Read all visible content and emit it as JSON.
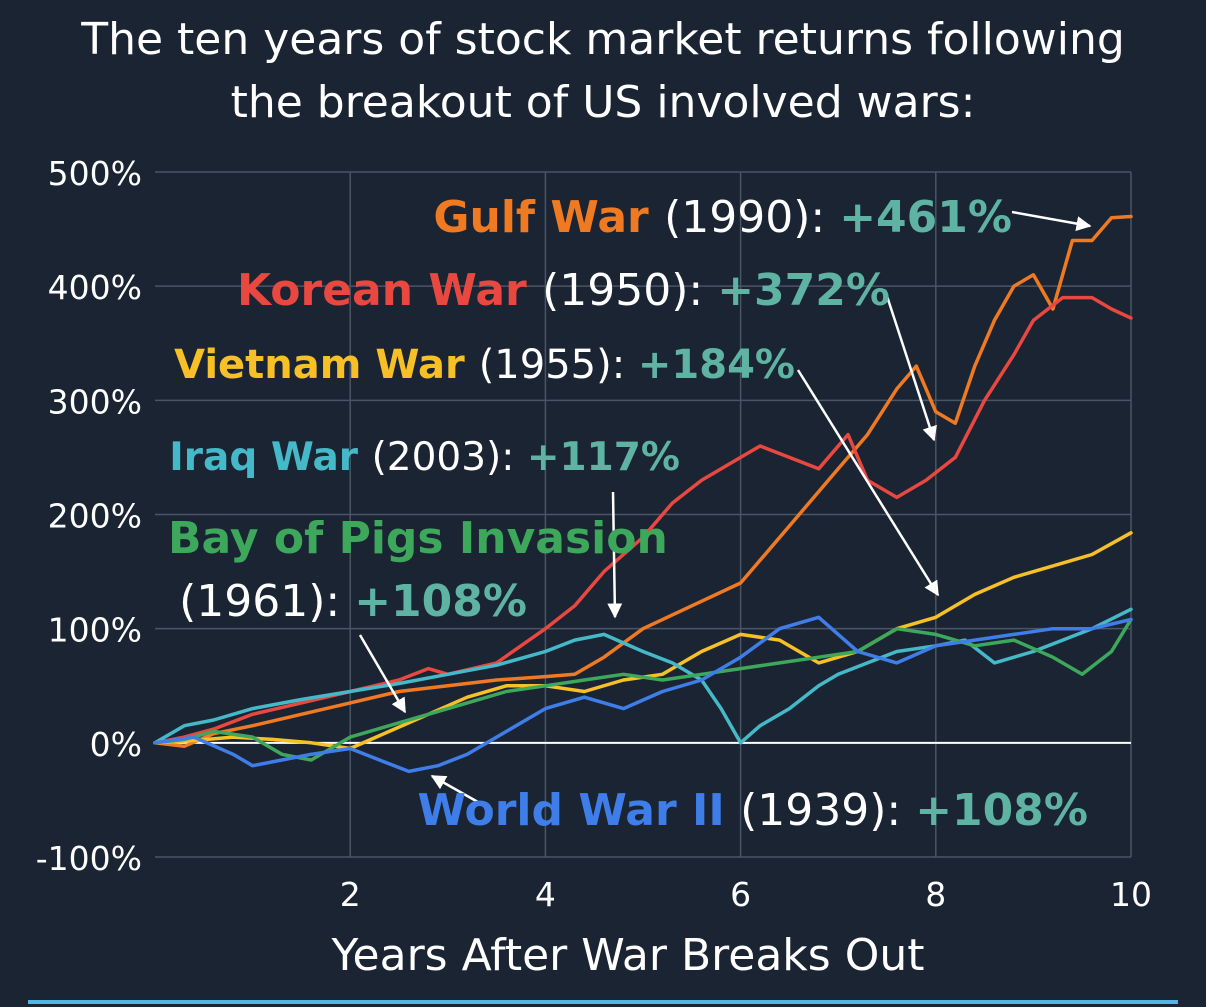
{
  "title_lines": [
    "The ten years of stock market returns following",
    "the breakout of US involved wars:"
  ],
  "colors": {
    "background": "#1a2433",
    "grid": "#4a5566",
    "zero_line": "#ffffff",
    "return_text": "#5fb3a3",
    "Gulf War": "#ef7a22",
    "Korean War": "#e8483f",
    "Vietnam War": "#f6c026",
    "Iraq War": "#45b9c7",
    "Bay of Pigs Invasion": "#3da85b",
    "World War II": "#3f7ee8"
  },
  "annotations": [
    {
      "name": "Gulf War",
      "years": "(1990):",
      "ret": "+461%"
    },
    {
      "name": "Korean War",
      "years": "(1950):",
      "ret": "+372%"
    },
    {
      "name": "Vietnam War",
      "years": "(1955):",
      "ret": "+184%"
    },
    {
      "name": "Iraq War",
      "years": "(2003):",
      "ret": "+117%"
    },
    {
      "name": "Bay of Pigs Invasion",
      "years": "(1961):",
      "ret": "+108%"
    },
    {
      "name": "World War II",
      "years": "(1939):",
      "ret": "+108%"
    }
  ],
  "chart_data": {
    "type": "line",
    "title": "The ten years of stock market returns following the breakout of US involved wars:",
    "xlabel": "Years After War Breaks Out",
    "ylabel": "",
    "xlim": [
      0,
      10
    ],
    "ylim": [
      -100,
      500
    ],
    "x_ticks": [
      2,
      4,
      6,
      8,
      10
    ],
    "y_ticks": [
      -100,
      0,
      100,
      200,
      300,
      400,
      500
    ],
    "y_tick_labels": [
      "-100%",
      "0%",
      "100%",
      "200%",
      "300%",
      "400%",
      "500%"
    ],
    "grid": true,
    "series": [
      {
        "name": "Gulf War",
        "x": [
          0,
          0.3,
          0.6,
          1,
          1.5,
          2,
          2.5,
          3,
          3.5,
          4,
          4.3,
          4.6,
          5,
          5.5,
          6,
          6.3,
          6.6,
          7,
          7.3,
          7.6,
          7.8,
          8,
          8.2,
          8.4,
          8.6,
          8.8,
          9,
          9.2,
          9.4,
          9.6,
          9.8,
          10
        ],
        "y": [
          0,
          -3,
          8,
          15,
          25,
          35,
          45,
          50,
          55,
          58,
          60,
          75,
          100,
          120,
          140,
          170,
          200,
          240,
          270,
          310,
          330,
          290,
          280,
          330,
          370,
          400,
          410,
          380,
          440,
          440,
          460,
          461
        ]
      },
      {
        "name": "Korean War",
        "x": [
          0,
          0.3,
          0.6,
          1,
          1.5,
          2,
          2.5,
          2.8,
          3,
          3.5,
          4,
          4.3,
          4.6,
          5,
          5.3,
          5.6,
          6,
          6.2,
          6.5,
          6.8,
          7.1,
          7.3,
          7.6,
          7.9,
          8.2,
          8.5,
          8.8,
          9,
          9.3,
          9.6,
          9.8,
          10
        ],
        "y": [
          0,
          5,
          12,
          25,
          35,
          45,
          55,
          65,
          60,
          70,
          100,
          120,
          150,
          180,
          210,
          230,
          250,
          260,
          250,
          240,
          270,
          230,
          215,
          230,
          250,
          300,
          340,
          370,
          390,
          390,
          380,
          372
        ]
      },
      {
        "name": "Vietnam War",
        "x": [
          0,
          0.4,
          0.8,
          1.2,
          1.6,
          2,
          2.4,
          2.8,
          3.2,
          3.6,
          4,
          4.4,
          4.8,
          5.2,
          5.6,
          6,
          6.4,
          6.8,
          7.2,
          7.6,
          8,
          8.4,
          8.8,
          9.2,
          9.6,
          10
        ],
        "y": [
          0,
          2,
          5,
          3,
          0,
          -5,
          10,
          25,
          40,
          50,
          50,
          45,
          55,
          60,
          80,
          95,
          90,
          70,
          80,
          100,
          110,
          130,
          145,
          155,
          165,
          184
        ]
      },
      {
        "name": "Iraq War",
        "x": [
          0,
          0.3,
          0.6,
          1,
          1.5,
          2,
          2.5,
          3,
          3.5,
          4,
          4.3,
          4.6,
          5,
          5.3,
          5.6,
          5.8,
          6,
          6.2,
          6.5,
          6.8,
          7,
          7.3,
          7.6,
          8,
          8.3,
          8.6,
          9,
          9.3,
          9.6,
          10
        ],
        "y": [
          0,
          15,
          20,
          30,
          38,
          45,
          52,
          60,
          68,
          80,
          90,
          95,
          80,
          70,
          55,
          30,
          0,
          15,
          30,
          50,
          60,
          70,
          80,
          85,
          90,
          70,
          80,
          90,
          100,
          117
        ]
      },
      {
        "name": "Bay of Pigs Invasion",
        "x": [
          0,
          0.3,
          0.6,
          1,
          1.3,
          1.6,
          2,
          2.4,
          2.8,
          3.2,
          3.6,
          4,
          4.4,
          4.8,
          5.2,
          5.6,
          6,
          6.4,
          6.8,
          7.2,
          7.6,
          8,
          8.4,
          8.8,
          9.2,
          9.5,
          9.8,
          10
        ],
        "y": [
          0,
          3,
          10,
          5,
          -10,
          -15,
          5,
          15,
          25,
          35,
          45,
          50,
          55,
          60,
          55,
          60,
          65,
          70,
          75,
          80,
          100,
          95,
          85,
          90,
          75,
          60,
          80,
          108
        ]
      },
      {
        "name": "World War II",
        "x": [
          0,
          0.4,
          0.8,
          1,
          1.3,
          1.6,
          2,
          2.3,
          2.6,
          2.9,
          3.2,
          3.5,
          4,
          4.4,
          4.8,
          5.2,
          5.6,
          6,
          6.4,
          6.8,
          7.2,
          7.6,
          8,
          8.4,
          8.8,
          9.2,
          9.6,
          10
        ],
        "y": [
          0,
          5,
          -10,
          -20,
          -15,
          -10,
          -5,
          -15,
          -25,
          -20,
          -10,
          5,
          30,
          40,
          30,
          45,
          55,
          75,
          100,
          110,
          80,
          70,
          85,
          90,
          95,
          100,
          100,
          108
        ]
      }
    ]
  }
}
